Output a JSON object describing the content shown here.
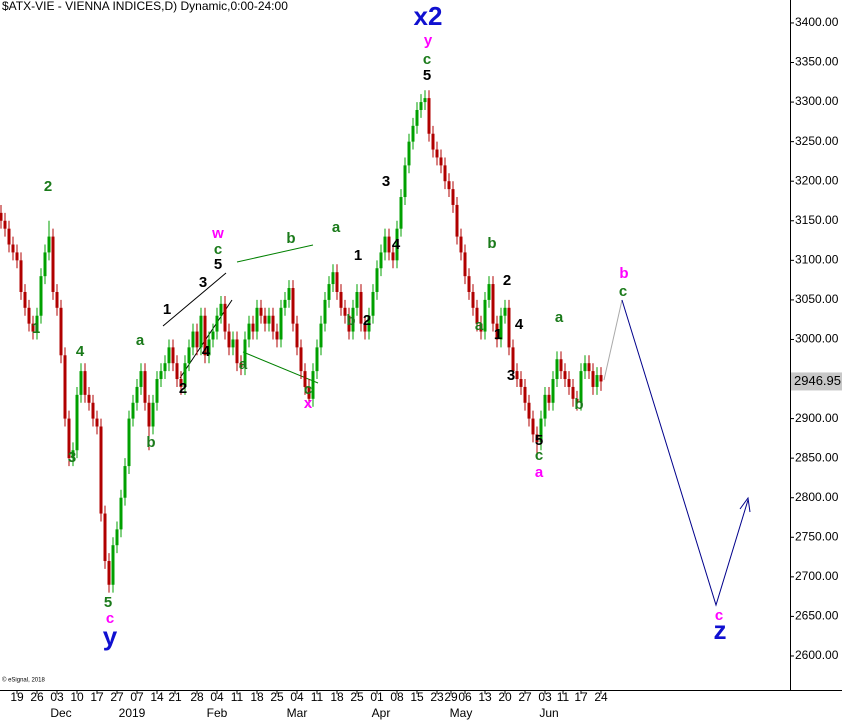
{
  "chart_data": {
    "type": "candlestick",
    "title": "$ATX-VIE - VIENNA INDICES,D) Dynamic,0:00-24:00",
    "footer": "© eSignal, 2018",
    "up_color": "#00a000",
    "down_color": "#b00000",
    "x": [
      -4,
      -3,
      -2,
      -1,
      0,
      1,
      2,
      3,
      4,
      5,
      6,
      7,
      8,
      9,
      10,
      11,
      12,
      13,
      14,
      15,
      16,
      17,
      18,
      19,
      20,
      21,
      22,
      23,
      24,
      25,
      26,
      27,
      28,
      29,
      30,
      31,
      32,
      33,
      34,
      35,
      36,
      37,
      38,
      39,
      40,
      41,
      42,
      43,
      44,
      45,
      46,
      47,
      48,
      49,
      50,
      51,
      52,
      53,
      54,
      55,
      56,
      57,
      58,
      59,
      60,
      61,
      62,
      63,
      64,
      65,
      66,
      67,
      68,
      69,
      70,
      71,
      72,
      73,
      74,
      75,
      76,
      77,
      78,
      79,
      80,
      81,
      82,
      83,
      84,
      85,
      86,
      87,
      88,
      89,
      90,
      91,
      92,
      93,
      94,
      95,
      96,
      97,
      98,
      99,
      100,
      101,
      102,
      103,
      104,
      105,
      106,
      107,
      108,
      109,
      110,
      111,
      112,
      113,
      114,
      115,
      116,
      117,
      118,
      119,
      120,
      121,
      122,
      123,
      124,
      125,
      126,
      127,
      128,
      129,
      130,
      131,
      132,
      133,
      134,
      135,
      136,
      137,
      138,
      139,
      140,
      141,
      142,
      143,
      144,
      145,
      146
    ],
    "open": [
      3160,
      3150,
      3140,
      3120,
      3110,
      3100,
      3060,
      3040,
      3020,
      3010,
      3030,
      3080,
      3110,
      3130,
      3060,
      3040,
      2980,
      2900,
      2850,
      2860,
      2930,
      2960,
      2930,
      2920,
      2900,
      2890,
      2780,
      2720,
      2690,
      2740,
      2760,
      2800,
      2840,
      2900,
      2920,
      2940,
      2960,
      2920,
      2890,
      2920,
      2950,
      2960,
      2970,
      2990,
      2970,
      2950,
      2940,
      2970,
      2990,
      3010,
      2990,
      3030,
      2980,
      3000,
      3010,
      3030,
      3045,
      3010,
      2990,
      3000,
      2970,
      2965,
      3000,
      3020,
      3010,
      3040,
      3030,
      3020,
      3030,
      3010,
      3000,
      3040,
      3050,
      3065,
      3020,
      2990,
      2960,
      2940,
      2925,
      2960,
      2990,
      3020,
      3050,
      3070,
      3085,
      3060,
      3040,
      3030,
      3010,
      3040,
      3060,
      3020,
      3010,
      3030,
      3060,
      3090,
      3110,
      3130,
      3110,
      3100,
      3140,
      3180,
      3220,
      3250,
      3270,
      3290,
      3300,
      3305,
      3260,
      3240,
      3230,
      3220,
      3200,
      3190,
      3170,
      3130,
      3110,
      3080,
      3060,
      3040,
      3020,
      3010,
      3050,
      3070,
      3020,
      3000,
      3030,
      3040,
      2990,
      2960,
      2950,
      2940,
      2920,
      2900,
      2880,
      2870,
      2900,
      2930,
      2920,
      2950,
      2975,
      2960,
      2950,
      2940,
      2925,
      2920,
      2960,
      2970,
      2960,
      2940,
      2955
    ],
    "high": [
      3170,
      3160,
      3150,
      3130,
      3120,
      3110,
      3070,
      3050,
      3030,
      3040,
      3090,
      3120,
      3150,
      3140,
      3070,
      3050,
      2990,
      2910,
      2870,
      2940,
      2970,
      2970,
      2940,
      2930,
      2910,
      2900,
      2790,
      2730,
      2750,
      2770,
      2810,
      2850,
      2910,
      2930,
      2950,
      2970,
      2970,
      2930,
      2930,
      2960,
      2970,
      2980,
      3000,
      3000,
      2980,
      2960,
      2980,
      3000,
      3020,
      3020,
      3040,
      3040,
      3010,
      3020,
      3040,
      3055,
      3055,
      3020,
      3010,
      3010,
      2980,
      3010,
      3030,
      3030,
      3050,
      3050,
      3040,
      3040,
      3040,
      3020,
      3050,
      3060,
      3075,
      3075,
      3030,
      3000,
      2970,
      2950,
      2970,
      3000,
      3030,
      3060,
      3080,
      3095,
      3095,
      3070,
      3050,
      3040,
      3050,
      3070,
      3070,
      3030,
      3040,
      3070,
      3100,
      3120,
      3140,
      3140,
      3120,
      3150,
      3190,
      3230,
      3260,
      3280,
      3300,
      3310,
      3315,
      3315,
      3270,
      3250,
      3240,
      3230,
      3210,
      3200,
      3180,
      3140,
      3120,
      3090,
      3070,
      3050,
      3030,
      3060,
      3080,
      3080,
      3030,
      3040,
      3050,
      3050,
      3000,
      2970,
      2960,
      2950,
      2930,
      2910,
      2890,
      2910,
      2940,
      2940,
      2960,
      2985,
      2985,
      2970,
      2960,
      2950,
      2935,
      2970,
      2980,
      2980,
      2970,
      2965,
      2965
    ],
    "low": [
      3140,
      3130,
      3110,
      3100,
      3090,
      3050,
      3030,
      3010,
      3000,
      3000,
      3020,
      3070,
      3100,
      3050,
      3030,
      2970,
      2890,
      2840,
      2840,
      2850,
      2920,
      2920,
      2910,
      2890,
      2880,
      2770,
      2710,
      2680,
      2680,
      2730,
      2750,
      2790,
      2830,
      2890,
      2910,
      2930,
      2910,
      2860,
      2880,
      2910,
      2940,
      2950,
      2960,
      2960,
      2940,
      2930,
      2930,
      2960,
      2980,
      2980,
      2980,
      2970,
      2970,
      2990,
      3000,
      3020,
      3000,
      2980,
      2980,
      2960,
      2955,
      2955,
      2990,
      3000,
      3000,
      3020,
      3010,
      3010,
      3000,
      2990,
      2990,
      3030,
      3040,
      3010,
      2980,
      2950,
      2930,
      2915,
      2915,
      2950,
      2980,
      3010,
      3040,
      3060,
      3050,
      3030,
      3020,
      3000,
      3000,
      3030,
      3010,
      3000,
      3000,
      3020,
      3050,
      3080,
      3100,
      3100,
      3090,
      3090,
      3130,
      3170,
      3210,
      3240,
      3260,
      3280,
      3290,
      3250,
      3230,
      3220,
      3210,
      3190,
      3180,
      3160,
      3120,
      3100,
      3070,
      3050,
      3030,
      3010,
      3000,
      3000,
      3040,
      3010,
      2990,
      2990,
      3020,
      2980,
      2950,
      2940,
      2930,
      2910,
      2890,
      2870,
      2850,
      2860,
      2890,
      2910,
      2910,
      2940,
      2950,
      2940,
      2930,
      2915,
      2910,
      2910,
      2950,
      2950,
      2930,
      2930,
      2935
    ],
    "close": [
      3150,
      3140,
      3120,
      3110,
      3100,
      3060,
      3040,
      3020,
      3010,
      3030,
      3080,
      3110,
      3130,
      3060,
      3040,
      2980,
      2900,
      2850,
      2860,
      2930,
      2960,
      2930,
      2920,
      2900,
      2890,
      2780,
      2720,
      2690,
      2740,
      2760,
      2800,
      2840,
      2900,
      2920,
      2940,
      2960,
      2920,
      2890,
      2920,
      2950,
      2960,
      2970,
      2990,
      2970,
      2950,
      2940,
      2970,
      2990,
      3010,
      2990,
      3030,
      2980,
      3000,
      3010,
      3030,
      3045,
      3010,
      2990,
      3000,
      2970,
      2965,
      3000,
      3020,
      3010,
      3040,
      3030,
      3020,
      3030,
      3010,
      3000,
      3040,
      3050,
      3065,
      3020,
      2990,
      2960,
      2940,
      2925,
      2960,
      2990,
      3020,
      3050,
      3070,
      3085,
      3060,
      3040,
      3030,
      3010,
      3040,
      3060,
      3020,
      3010,
      3030,
      3060,
      3090,
      3110,
      3130,
      3110,
      3100,
      3140,
      3180,
      3220,
      3250,
      3270,
      3290,
      3300,
      3305,
      3260,
      3240,
      3230,
      3220,
      3200,
      3190,
      3170,
      3130,
      3110,
      3080,
      3060,
      3040,
      3020,
      3010,
      3050,
      3070,
      3020,
      3000,
      3030,
      3040,
      2990,
      2960,
      2950,
      2940,
      2920,
      2900,
      2880,
      2870,
      2900,
      2930,
      2920,
      2950,
      2975,
      2960,
      2950,
      2940,
      2925,
      2920,
      2960,
      2970,
      2960,
      2940,
      2955,
      2946.95
    ],
    "last_label": "2946.95",
    "xlim": [
      -4.25,
      193.25
    ],
    "ylim": [
      2557,
      3429
    ],
    "yticks": [
      {
        "value": 2600,
        "label": "2600.00"
      },
      {
        "value": 2650,
        "label": "2650.00"
      },
      {
        "value": 2700,
        "label": "2700.00"
      },
      {
        "value": 2750,
        "label": "2750.00"
      },
      {
        "value": 2800,
        "label": "2800.00"
      },
      {
        "value": 2850,
        "label": "2850.00"
      },
      {
        "value": 2900,
        "label": "2900.00"
      },
      {
        "value": 2950,
        "label": "2950.00"
      },
      {
        "value": 3000,
        "label": "3000.00"
      },
      {
        "value": 3050,
        "label": "3050.00"
      },
      {
        "value": 3100,
        "label": "3100.00"
      },
      {
        "value": 3150,
        "label": "3150.00"
      },
      {
        "value": 3200,
        "label": "3200.00"
      },
      {
        "value": 3250,
        "label": "3250.00"
      },
      {
        "value": 3300,
        "label": "3300.00"
      },
      {
        "value": 3350,
        "label": "3350.00"
      },
      {
        "value": 3400,
        "label": "3400.00"
      }
    ],
    "xticks": [
      {
        "value": 0,
        "label": "19"
      },
      {
        "value": 5,
        "label": "26"
      },
      {
        "value": 10,
        "label": "03"
      },
      {
        "value": 15,
        "label": "10"
      },
      {
        "value": 20,
        "label": "17"
      },
      {
        "value": 25,
        "label": "27"
      },
      {
        "value": 30,
        "label": "07"
      },
      {
        "value": 35,
        "label": "14"
      },
      {
        "value": 39.5,
        "label": "21"
      },
      {
        "value": 45,
        "label": "28"
      },
      {
        "value": 50,
        "label": "04"
      },
      {
        "value": 55,
        "label": "11"
      },
      {
        "value": 60,
        "label": "18"
      },
      {
        "value": 65,
        "label": "25"
      },
      {
        "value": 70,
        "label": "04"
      },
      {
        "value": 75,
        "label": "11"
      },
      {
        "value": 80,
        "label": "18"
      },
      {
        "value": 85,
        "label": "25"
      },
      {
        "value": 90,
        "label": "01"
      },
      {
        "value": 95,
        "label": "08"
      },
      {
        "value": 100,
        "label": "15"
      },
      {
        "value": 105,
        "label": "23"
      },
      {
        "value": 108.5,
        "label": "29"
      },
      {
        "value": 112,
        "label": "06"
      },
      {
        "value": 117,
        "label": "13"
      },
      {
        "value": 122,
        "label": "20"
      },
      {
        "value": 127,
        "label": "27"
      },
      {
        "value": 132,
        "label": "03"
      },
      {
        "value": 136.5,
        "label": "11"
      },
      {
        "value": 141,
        "label": "17"
      },
      {
        "value": 146,
        "label": "24"
      }
    ],
    "month_ticks": [
      {
        "value": 11,
        "label": "Dec"
      },
      {
        "value": 28.75,
        "label": "2019"
      },
      {
        "value": 50,
        "label": "Feb"
      },
      {
        "value": 70,
        "label": "Mar"
      },
      {
        "value": 91,
        "label": "Apr"
      },
      {
        "value": 111,
        "label": "May"
      },
      {
        "value": 133,
        "label": "Jun"
      }
    ],
    "annotations": [
      {
        "text": "2",
        "color": "#1a7a1a"
      },
      {
        "text": "1",
        "color": "#1a7a1a"
      },
      {
        "text": "4",
        "color": "#1a7a1a"
      },
      {
        "text": "3",
        "color": "#1a7a1a"
      },
      {
        "text": "5",
        "color": "#1a7a1a"
      },
      {
        "text": "c",
        "color": "#ff00ff"
      },
      {
        "text": "y",
        "color": "#1010d0"
      },
      {
        "text": "a",
        "color": "#1a7a1a"
      },
      {
        "text": "b",
        "color": "#1a7a1a"
      },
      {
        "text": "1",
        "color": "#000000"
      },
      {
        "text": "2",
        "color": "#000000"
      },
      {
        "text": "3",
        "color": "#000000"
      },
      {
        "text": "4",
        "color": "#000000"
      },
      {
        "text": "5",
        "color": "#000000"
      },
      {
        "text": "c",
        "color": "#1a7a1a"
      },
      {
        "text": "w",
        "color": "#ff00ff"
      },
      {
        "text": "a",
        "color": "#1a7a1a"
      },
      {
        "text": "b",
        "color": "#1a7a1a"
      },
      {
        "text": "c",
        "color": "#1a7a1a"
      },
      {
        "text": "x",
        "color": "#ff00ff"
      },
      {
        "text": "a",
        "color": "#1a7a1a"
      },
      {
        "text": "1",
        "color": "#000000"
      },
      {
        "text": "b",
        "color": "#1a7a1a"
      },
      {
        "text": "2",
        "color": "#000000"
      },
      {
        "text": "3",
        "color": "#000000"
      },
      {
        "text": "4",
        "color": "#000000"
      },
      {
        "text": "c",
        "color": "#1a7a1a"
      },
      {
        "text": "5",
        "color": "#000000"
      },
      {
        "text": "y",
        "color": "#ff00ff"
      },
      {
        "text": "x2",
        "color": "#1010d0"
      },
      {
        "text": "b",
        "color": "#1a7a1a"
      },
      {
        "text": "2",
        "color": "#000000"
      },
      {
        "text": "a",
        "color": "#1a7a1a"
      },
      {
        "text": "1",
        "color": "#000000"
      },
      {
        "text": "4",
        "color": "#000000"
      },
      {
        "text": "3",
        "color": "#000000"
      },
      {
        "text": "a",
        "color": "#1a7a1a"
      },
      {
        "text": "b",
        "color": "#1a7a1a"
      },
      {
        "text": "5",
        "color": "#000000"
      },
      {
        "text": "c",
        "color": "#1a7a1a"
      },
      {
        "text": "a",
        "color": "#ff00ff"
      },
      {
        "text": "b",
        "color": "#ff00ff"
      },
      {
        "text": "c",
        "color": "#1a7a1a"
      },
      {
        "text": "c",
        "color": "#ff00ff"
      },
      {
        "text": "z",
        "color": "#1010d0"
      }
    ]
  }
}
